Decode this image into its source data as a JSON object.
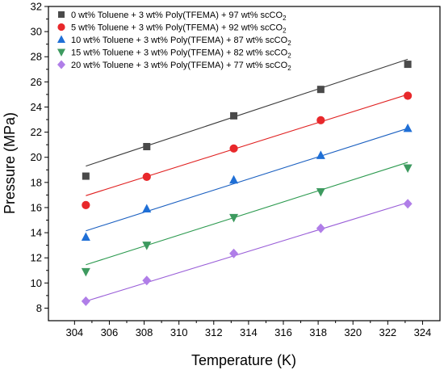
{
  "chart_data": {
    "type": "scatter",
    "xlabel": "Temperature (K)",
    "ylabel": "Pressure (MPa)",
    "xlim": [
      302.5,
      325
    ],
    "ylim": [
      7,
      32
    ],
    "xticks": [
      304,
      306,
      308,
      310,
      312,
      314,
      316,
      318,
      320,
      322,
      324
    ],
    "yticks": [
      8,
      10,
      12,
      14,
      16,
      18,
      20,
      22,
      24,
      26,
      28,
      30,
      32
    ],
    "grid": false,
    "legend_position": "top-left",
    "series": [
      {
        "name": "0 wt% Toluene + 3 wt% Poly(TFEMA) + 97 wt% scCO",
        "name_sub": "2",
        "marker": "square",
        "marker_color": "#4a4a4a",
        "line_color": "#3a3a3a",
        "x": [
          304.65,
          308.15,
          313.15,
          318.15,
          323.15
        ],
        "y": [
          18.5,
          20.85,
          23.3,
          25.4,
          27.4
        ],
        "fit": [
          [
            304.65,
            19.3
          ],
          [
            323.15,
            27.8
          ]
        ]
      },
      {
        "name": "5 wt% Toluene + 3 wt% Poly(TFEMA) + 92 wt% scCO",
        "name_sub": "2",
        "marker": "circle",
        "marker_color": "#e8282b",
        "line_color": "#e02020",
        "x": [
          304.65,
          308.15,
          313.15,
          318.15,
          323.15
        ],
        "y": [
          16.2,
          18.45,
          20.7,
          22.95,
          24.9
        ],
        "fit": [
          [
            304.65,
            16.95
          ],
          [
            323.15,
            25.0
          ]
        ]
      },
      {
        "name": "10 wt% Toluene + 3 wt% Poly(TFEMA) + 87 wt% scCO",
        "name_sub": "2",
        "marker": "triangle-up",
        "marker_color": "#1f6fd6",
        "line_color": "#1a5fc0",
        "x": [
          304.65,
          308.15,
          313.15,
          318.15,
          323.15
        ],
        "y": [
          13.65,
          15.9,
          18.2,
          20.15,
          22.3
        ],
        "fit": [
          [
            304.65,
            14.15
          ],
          [
            323.15,
            22.3
          ]
        ]
      },
      {
        "name": "15 wt% Toluene + 3 wt% Poly(TFEMA) + 82 wt% scCO",
        "name_sub": "2",
        "marker": "triangle-down",
        "marker_color": "#3d9a5f",
        "line_color": "#2c9a4f",
        "x": [
          304.65,
          308.15,
          313.15,
          318.15,
          323.15
        ],
        "y": [
          10.9,
          13.0,
          15.2,
          17.25,
          19.15
        ],
        "fit": [
          [
            304.65,
            11.45
          ],
          [
            323.15,
            19.6
          ]
        ]
      },
      {
        "name": "20 wt% Toluene + 3 wt% Poly(TFEMA) + 77 wt% scCO",
        "name_sub": "2",
        "marker": "diamond",
        "marker_color": "#b07ee8",
        "line_color": "#9a5fd8",
        "x": [
          304.65,
          308.15,
          313.15,
          318.15,
          323.15
        ],
        "y": [
          8.55,
          10.2,
          12.35,
          14.35,
          16.3
        ],
        "fit": [
          [
            304.65,
            8.55
          ],
          [
            323.15,
            16.4
          ]
        ]
      }
    ]
  }
}
